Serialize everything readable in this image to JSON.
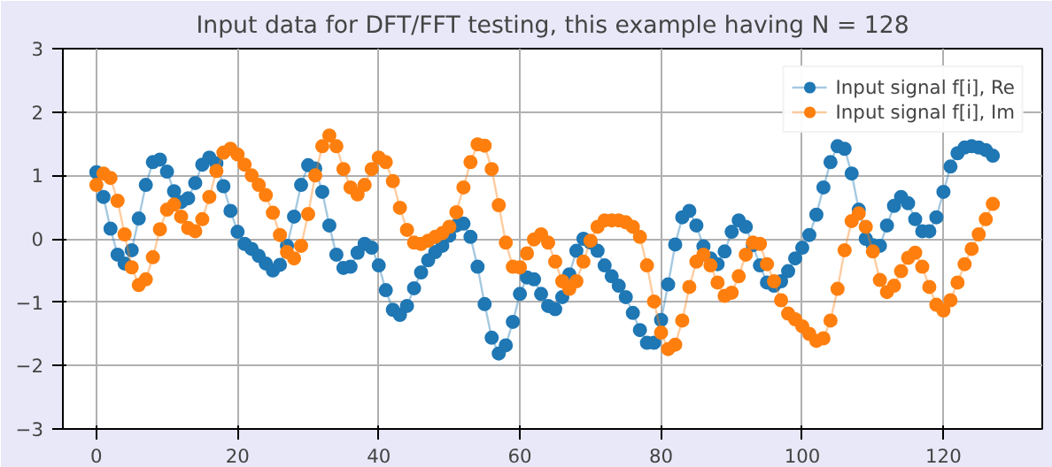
{
  "chart_data": {
    "type": "line",
    "title": "Input data for DFT/FFT testing, this example having N = 128",
    "x": [
      0,
      1,
      2,
      3,
      4,
      5,
      6,
      7,
      8,
      9,
      10,
      11,
      12,
      13,
      14,
      15,
      16,
      17,
      18,
      19,
      20,
      21,
      22,
      23,
      24,
      25,
      26,
      27,
      28,
      29,
      30,
      31,
      32,
      33,
      34,
      35,
      36,
      37,
      38,
      39,
      40,
      41,
      42,
      43,
      44,
      45,
      46,
      47,
      48,
      49,
      50,
      51,
      52,
      53,
      54,
      55,
      56,
      57,
      58,
      59,
      60,
      61,
      62,
      63,
      64,
      65,
      66,
      67,
      68,
      69,
      70,
      71,
      72,
      73,
      74,
      75,
      76,
      77,
      78,
      79,
      80,
      81,
      82,
      83,
      84,
      85,
      86,
      87,
      88,
      89,
      90,
      91,
      92,
      93,
      94,
      95,
      96,
      97,
      98,
      99,
      100,
      101,
      102,
      103,
      104,
      105,
      106,
      107,
      108,
      109,
      110,
      111,
      112,
      113,
      114,
      115,
      116,
      117,
      118,
      119,
      120,
      121,
      122,
      123,
      124,
      125,
      126,
      127
    ],
    "series": [
      {
        "name": "Input signal f[i], Re",
        "color": "#1f77b4",
        "values": [
          1.05,
          0.66,
          0.16,
          -0.25,
          -0.39,
          -0.18,
          0.32,
          0.85,
          1.21,
          1.25,
          1.06,
          0.75,
          0.58,
          0.64,
          0.88,
          1.17,
          1.28,
          1.19,
          0.83,
          0.44,
          0.11,
          -0.08,
          -0.16,
          -0.27,
          -0.39,
          -0.5,
          -0.41,
          -0.11,
          0.35,
          0.85,
          1.16,
          1.11,
          0.74,
          0.21,
          -0.25,
          -0.46,
          -0.44,
          -0.22,
          -0.08,
          -0.14,
          -0.42,
          -0.81,
          -1.12,
          -1.2,
          -1.06,
          -0.78,
          -0.53,
          -0.34,
          -0.21,
          -0.11,
          0.05,
          0.21,
          0.24,
          0.03,
          -0.44,
          -1.03,
          -1.56,
          -1.81,
          -1.68,
          -1.31,
          -0.87,
          -0.61,
          -0.64,
          -0.87,
          -1.06,
          -1.11,
          -0.92,
          -0.56,
          -0.19,
          0.0,
          -0.06,
          -0.19,
          -0.42,
          -0.59,
          -0.74,
          -0.92,
          -1.17,
          -1.44,
          -1.64,
          -1.64,
          -1.28,
          -0.72,
          -0.09,
          0.34,
          0.44,
          0.21,
          -0.12,
          -0.31,
          -0.4,
          -0.2,
          0.11,
          0.29,
          0.19,
          -0.1,
          -0.42,
          -0.69,
          -0.74,
          -0.67,
          -0.51,
          -0.31,
          -0.14,
          0.06,
          0.38,
          0.81,
          1.21,
          1.46,
          1.42,
          1.03,
          0.46,
          0.0,
          -0.1,
          -0.11,
          0.21,
          0.52,
          0.66,
          0.56,
          0.31,
          0.12,
          0.12,
          0.34,
          0.74,
          1.14,
          1.35,
          1.44,
          1.46,
          1.44,
          1.4,
          1.31
        ]
      },
      {
        "name": "Input signal f[i], Im",
        "color": "#ff7f0e",
        "values": [
          0.85,
          1.03,
          0.96,
          0.6,
          0.07,
          -0.45,
          -0.73,
          -0.64,
          -0.29,
          0.15,
          0.46,
          0.54,
          0.35,
          0.17,
          0.12,
          0.31,
          0.66,
          1.07,
          1.36,
          1.42,
          1.33,
          1.17,
          1.0,
          0.85,
          0.69,
          0.41,
          0.06,
          -0.21,
          -0.31,
          -0.11,
          0.39,
          1.0,
          1.46,
          1.63,
          1.46,
          1.1,
          0.81,
          0.7,
          0.85,
          1.1,
          1.28,
          1.21,
          0.91,
          0.49,
          0.14,
          -0.06,
          -0.08,
          -0.03,
          0.03,
          0.09,
          0.19,
          0.42,
          0.81,
          1.21,
          1.49,
          1.47,
          1.1,
          0.53,
          -0.06,
          -0.44,
          -0.45,
          -0.23,
          -0.01,
          0.07,
          -0.06,
          -0.36,
          -0.67,
          -0.79,
          -0.67,
          -0.36,
          -0.03,
          0.19,
          0.29,
          0.29,
          0.29,
          0.26,
          0.19,
          0.03,
          -0.42,
          -0.99,
          -1.48,
          -1.74,
          -1.67,
          -1.29,
          -0.76,
          -0.36,
          -0.25,
          -0.42,
          -0.69,
          -0.9,
          -0.85,
          -0.59,
          -0.25,
          -0.06,
          -0.08,
          -0.4,
          -0.67,
          -0.97,
          -1.18,
          -1.27,
          -1.38,
          -1.5,
          -1.61,
          -1.57,
          -1.29,
          -0.79,
          -0.18,
          0.28,
          0.4,
          0.19,
          -0.2,
          -0.65,
          -0.84,
          -0.74,
          -0.51,
          -0.3,
          -0.22,
          -0.44,
          -0.76,
          -1.04,
          -1.13,
          -0.97,
          -0.69,
          -0.4,
          -0.16,
          0.07,
          0.31,
          0.55
        ]
      }
    ],
    "xlim": [
      -4.75,
      134
    ],
    "ylim": [
      -3,
      3
    ],
    "xticks": [
      0,
      20,
      40,
      60,
      80,
      100,
      120
    ],
    "yticks": [
      -3,
      -2,
      -1,
      0,
      1,
      2,
      3
    ],
    "grid": true,
    "legend": "top right",
    "marker": "circle",
    "line_style": "solid"
  }
}
